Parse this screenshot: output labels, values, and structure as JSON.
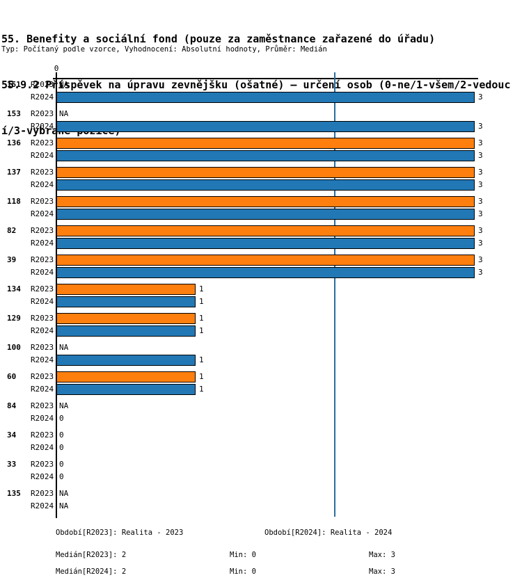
{
  "title_lines": [
    "55. Benefity a sociální fond (pouze za zaměstnance zařazené do úřadu)",
    "55.9.2 Příspěvek na úpravu zevnějšku (ošatné) – určení osob (0-ne/1-všem/2-vedouc",
    "í/3-vybrané pozice)"
  ],
  "subtitle": "Typ: Počítaný podle vzorce, Vyhodnocení: Absolutní hodnoty, Průměr: Medián",
  "colors": {
    "r2023_bar": "#ff7f0e",
    "r2024_bar": "#2278b5",
    "median_line": "#2a6d9e",
    "axis": "#000000"
  },
  "chart_data": {
    "type": "bar",
    "orientation": "horizontal",
    "title": "55.9.2 Příspěvek na úpravu zevnějšku (ošatné) – určení osob (0-ne/1-všem/2-vedoucí/3-vybrané pozice)",
    "axis_top_tick_label": "0",
    "xlim": [
      0,
      3
    ],
    "grid": false,
    "median_reference_value": 2,
    "series_labels": [
      "R2023",
      "R2024"
    ],
    "na_text": "NA",
    "groups": [
      {
        "id": "151",
        "r2023": "NA",
        "r2024": 3
      },
      {
        "id": "153",
        "r2023": "NA",
        "r2024": 3
      },
      {
        "id": "136",
        "r2023": 3,
        "r2024": 3
      },
      {
        "id": "137",
        "r2023": 3,
        "r2024": 3
      },
      {
        "id": "118",
        "r2023": 3,
        "r2024": 3
      },
      {
        "id": "82",
        "r2023": 3,
        "r2024": 3
      },
      {
        "id": "39",
        "r2023": 3,
        "r2024": 3
      },
      {
        "id": "134",
        "r2023": 1,
        "r2024": 1
      },
      {
        "id": "129",
        "r2023": 1,
        "r2024": 1
      },
      {
        "id": "100",
        "r2023": "NA",
        "r2024": 1
      },
      {
        "id": "60",
        "r2023": 1,
        "r2024": 1
      },
      {
        "id": "84",
        "r2023": "NA",
        "r2024": 0
      },
      {
        "id": "34",
        "r2023": 0,
        "r2024": 0
      },
      {
        "id": "33",
        "r2023": 0,
        "r2024": 0
      },
      {
        "id": "135",
        "r2023": "NA",
        "r2024": "NA"
      }
    ]
  },
  "footer": {
    "period_labels": [
      "Období[R2023]: Realita - 2023",
      "Období[R2024]: Realita - 2024"
    ],
    "stats_rows": [
      {
        "median": "Medián[R2023]: 2",
        "min": "Min: 0",
        "max": "Max: 3"
      },
      {
        "median": "Medián[R2024]: 2",
        "min": "Min: 0",
        "max": "Max: 3"
      }
    ]
  }
}
